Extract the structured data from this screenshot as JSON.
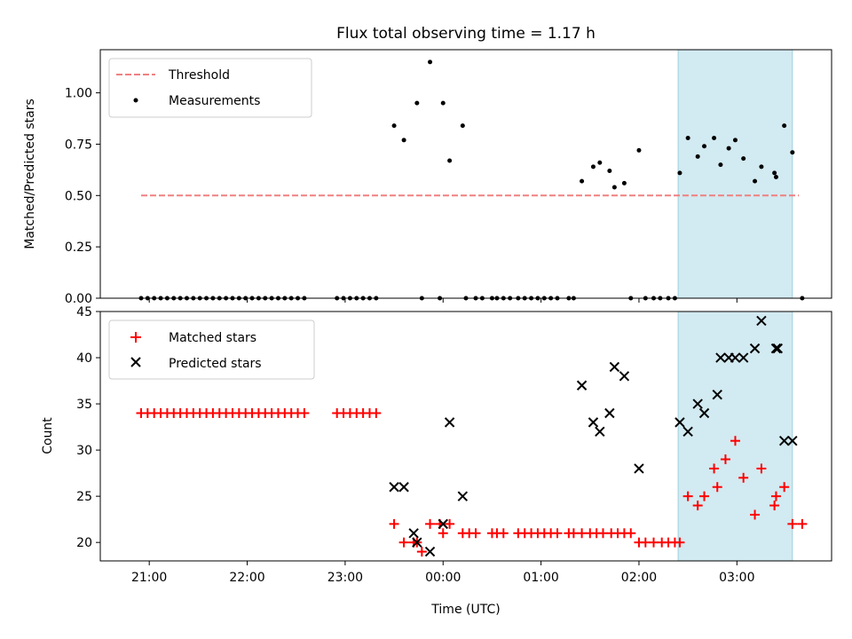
{
  "chart_data": [
    {
      "type": "scatter",
      "title": "Flux total observing time = 1.17 h",
      "ylabel": "Matched/Predicted stars",
      "xlabel": "",
      "xlim": [
        "20:30",
        "03:58"
      ],
      "ylim": [
        0,
        1.21
      ],
      "yticks": [
        "0.00",
        "0.25",
        "0.50",
        "0.75",
        "1.00"
      ],
      "x_tick_labels": [],
      "shaded_interval": [
        "02:24",
        "03:34"
      ],
      "shade_color": "#add8e6",
      "legend": "upper left",
      "legend_entries": [
        {
          "label": "Threshold",
          "color": "#f08080",
          "marker": "dashed-line"
        },
        {
          "label": "Measurements",
          "color": "#000000",
          "marker": "dot"
        }
      ],
      "threshold": {
        "value": 0.5,
        "x_start": "20:55",
        "x_end": "03:38"
      },
      "measurements": [
        [
          "20:55",
          0
        ],
        [
          "20:59",
          0
        ],
        [
          "21:03",
          0
        ],
        [
          "21:07",
          0
        ],
        [
          "21:11",
          0
        ],
        [
          "21:15",
          0
        ],
        [
          "21:19",
          0
        ],
        [
          "21:23",
          0
        ],
        [
          "21:27",
          0
        ],
        [
          "21:31",
          0
        ],
        [
          "21:35",
          0
        ],
        [
          "21:39",
          0
        ],
        [
          "21:43",
          0
        ],
        [
          "21:47",
          0
        ],
        [
          "21:51",
          0
        ],
        [
          "21:55",
          0
        ],
        [
          "21:59",
          0
        ],
        [
          "22:03",
          0
        ],
        [
          "22:07",
          0
        ],
        [
          "22:11",
          0
        ],
        [
          "22:15",
          0
        ],
        [
          "22:19",
          0
        ],
        [
          "22:23",
          0
        ],
        [
          "22:27",
          0
        ],
        [
          "22:31",
          0
        ],
        [
          "22:35",
          0
        ],
        [
          "22:55",
          0
        ],
        [
          "22:59",
          0
        ],
        [
          "23:03",
          0
        ],
        [
          "23:07",
          0
        ],
        [
          "23:11",
          0
        ],
        [
          "23:15",
          0
        ],
        [
          "23:19",
          0
        ],
        [
          "23:30",
          0.84
        ],
        [
          "23:36",
          0.77
        ],
        [
          "23:44",
          0.95
        ],
        [
          "23:47",
          0
        ],
        [
          "23:52",
          1.15
        ],
        [
          "23:58",
          0
        ],
        [
          "00:00",
          0.95
        ],
        [
          "00:04",
          0.67
        ],
        [
          "00:12",
          0.84
        ],
        [
          "00:14",
          0
        ],
        [
          "00:20",
          0
        ],
        [
          "00:24",
          0
        ],
        [
          "00:30",
          0
        ],
        [
          "00:33",
          0
        ],
        [
          "00:37",
          0
        ],
        [
          "00:41",
          0
        ],
        [
          "00:46",
          0
        ],
        [
          "00:50",
          0
        ],
        [
          "00:54",
          0
        ],
        [
          "00:58",
          0
        ],
        [
          "01:02",
          0
        ],
        [
          "01:06",
          0
        ],
        [
          "01:10",
          0
        ],
        [
          "01:17",
          0
        ],
        [
          "01:20",
          0
        ],
        [
          "01:25",
          0.57
        ],
        [
          "01:32",
          0.64
        ],
        [
          "01:36",
          0.66
        ],
        [
          "01:42",
          0.62
        ],
        [
          "01:45",
          0.54
        ],
        [
          "01:51",
          0.56
        ],
        [
          "01:55",
          0
        ],
        [
          "02:00",
          0.72
        ],
        [
          "02:04",
          0
        ],
        [
          "02:09",
          0
        ],
        [
          "02:13",
          0
        ],
        [
          "02:18",
          0
        ],
        [
          "02:22",
          0
        ],
        [
          "02:25",
          0.61
        ],
        [
          "02:30",
          0.78
        ],
        [
          "02:36",
          0.69
        ],
        [
          "02:40",
          0.74
        ],
        [
          "02:46",
          0.78
        ],
        [
          "02:50",
          0.65
        ],
        [
          "02:55",
          0.73
        ],
        [
          "02:59",
          0.77
        ],
        [
          "03:04",
          0.68
        ],
        [
          "03:11",
          0.57
        ],
        [
          "03:15",
          0.64
        ],
        [
          "03:23",
          0.61
        ],
        [
          "03:24",
          0.59
        ],
        [
          "03:29",
          0.84
        ],
        [
          "03:34",
          0.71
        ],
        [
          "03:40",
          0
        ]
      ]
    },
    {
      "type": "scatter",
      "title": "",
      "ylabel": "Count",
      "xlabel": "Time (UTC)",
      "xlim": [
        "20:30",
        "03:58"
      ],
      "ylim": [
        18,
        45
      ],
      "yticks": [
        "20",
        "25",
        "30",
        "35",
        "40",
        "45"
      ],
      "x_tick_labels": [
        "21:00",
        "22:00",
        "23:00",
        "00:00",
        "01:00",
        "02:00",
        "03:00"
      ],
      "shaded_interval": [
        "02:24",
        "03:34"
      ],
      "shade_color": "#add8e6",
      "legend": "upper left",
      "legend_entries": [
        {
          "label": "Matched stars",
          "color": "#ff0000",
          "marker": "plus"
        },
        {
          "label": "Predicted stars",
          "color": "#000000",
          "marker": "x"
        }
      ],
      "series": [
        {
          "name": "Matched stars",
          "color": "#ff0000",
          "marker": "plus",
          "points": [
            [
              "20:55",
              34
            ],
            [
              "20:59",
              34
            ],
            [
              "21:03",
              34
            ],
            [
              "21:07",
              34
            ],
            [
              "21:11",
              34
            ],
            [
              "21:15",
              34
            ],
            [
              "21:19",
              34
            ],
            [
              "21:23",
              34
            ],
            [
              "21:27",
              34
            ],
            [
              "21:31",
              34
            ],
            [
              "21:35",
              34
            ],
            [
              "21:39",
              34
            ],
            [
              "21:43",
              34
            ],
            [
              "21:47",
              34
            ],
            [
              "21:51",
              34
            ],
            [
              "21:55",
              34
            ],
            [
              "21:59",
              34
            ],
            [
              "22:03",
              34
            ],
            [
              "22:07",
              34
            ],
            [
              "22:11",
              34
            ],
            [
              "22:15",
              34
            ],
            [
              "22:19",
              34
            ],
            [
              "22:23",
              34
            ],
            [
              "22:27",
              34
            ],
            [
              "22:31",
              34
            ],
            [
              "22:35",
              34
            ],
            [
              "22:55",
              34
            ],
            [
              "22:59",
              34
            ],
            [
              "23:03",
              34
            ],
            [
              "23:07",
              34
            ],
            [
              "23:11",
              34
            ],
            [
              "23:15",
              34
            ],
            [
              "23:19",
              34
            ],
            [
              "23:30",
              22
            ],
            [
              "23:36",
              20
            ],
            [
              "23:42",
              20
            ],
            [
              "23:44",
              20
            ],
            [
              "23:47",
              19
            ],
            [
              "23:52",
              22
            ],
            [
              "23:58",
              22
            ],
            [
              "00:00",
              21
            ],
            [
              "00:04",
              22
            ],
            [
              "00:12",
              21
            ],
            [
              "00:16",
              21
            ],
            [
              "00:20",
              21
            ],
            [
              "00:30",
              21
            ],
            [
              "00:33",
              21
            ],
            [
              "00:37",
              21
            ],
            [
              "00:46",
              21
            ],
            [
              "00:50",
              21
            ],
            [
              "00:54",
              21
            ],
            [
              "00:58",
              21
            ],
            [
              "01:02",
              21
            ],
            [
              "01:06",
              21
            ],
            [
              "01:10",
              21
            ],
            [
              "01:17",
              21
            ],
            [
              "01:20",
              21
            ],
            [
              "01:25",
              21
            ],
            [
              "01:30",
              21
            ],
            [
              "01:34",
              21
            ],
            [
              "01:38",
              21
            ],
            [
              "01:43",
              21
            ],
            [
              "01:47",
              21
            ],
            [
              "01:51",
              21
            ],
            [
              "01:55",
              21
            ],
            [
              "02:00",
              20
            ],
            [
              "02:04",
              20
            ],
            [
              "02:09",
              20
            ],
            [
              "02:14",
              20
            ],
            [
              "02:18",
              20
            ],
            [
              "02:22",
              20
            ],
            [
              "02:25",
              20
            ],
            [
              "02:30",
              25
            ],
            [
              "02:36",
              24
            ],
            [
              "02:40",
              25
            ],
            [
              "02:46",
              28
            ],
            [
              "02:48",
              26
            ],
            [
              "02:53",
              29
            ],
            [
              "02:59",
              31
            ],
            [
              "03:04",
              27
            ],
            [
              "03:11",
              23
            ],
            [
              "03:15",
              28
            ],
            [
              "03:23",
              24
            ],
            [
              "03:24",
              25
            ],
            [
              "03:29",
              26
            ],
            [
              "03:34",
              22
            ],
            [
              "03:40",
              22
            ]
          ]
        },
        {
          "name": "Predicted stars",
          "color": "#000000",
          "marker": "x",
          "points": [
            [
              "23:30",
              26
            ],
            [
              "23:36",
              26
            ],
            [
              "23:42",
              21
            ],
            [
              "23:44",
              20
            ],
            [
              "23:52",
              19
            ],
            [
              "00:00",
              22
            ],
            [
              "00:04",
              33
            ],
            [
              "00:12",
              25
            ],
            [
              "01:25",
              37
            ],
            [
              "01:32",
              33
            ],
            [
              "01:36",
              32
            ],
            [
              "01:42",
              34
            ],
            [
              "01:45",
              39
            ],
            [
              "01:51",
              38
            ],
            [
              "02:00",
              28
            ],
            [
              "02:25",
              33
            ],
            [
              "02:30",
              32
            ],
            [
              "02:36",
              35
            ],
            [
              "02:40",
              34
            ],
            [
              "02:48",
              36
            ],
            [
              "02:50",
              40
            ],
            [
              "02:55",
              40
            ],
            [
              "02:59",
              40
            ],
            [
              "03:04",
              40
            ],
            [
              "03:11",
              41
            ],
            [
              "03:15",
              44
            ],
            [
              "03:24",
              41
            ],
            [
              "03:25",
              41
            ],
            [
              "03:29",
              31
            ],
            [
              "03:34",
              31
            ]
          ]
        }
      ]
    }
  ]
}
